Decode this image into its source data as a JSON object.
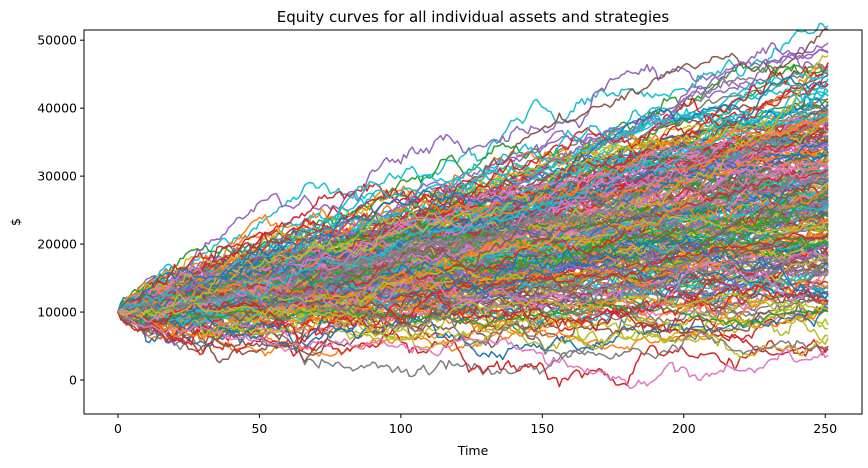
{
  "chart_data": {
    "type": "line",
    "title": "Equity curves for all individual assets and strategies",
    "xlabel": "Time",
    "ylabel": "$",
    "xlim": [
      -12,
      263
    ],
    "ylim": [
      -5000,
      51500
    ],
    "x_ticks": [
      0,
      50,
      100,
      150,
      200,
      250
    ],
    "y_ticks": [
      0,
      10000,
      20000,
      30000,
      40000,
      50000
    ],
    "grid": false,
    "legend": "none",
    "n_points": 252,
    "start_value": 10000,
    "n_series": 300,
    "color_cycle": [
      "#1f77b4",
      "#ff7f0e",
      "#2ca02c",
      "#d62728",
      "#9467bd",
      "#8c564b",
      "#e377c2",
      "#7f7f7f",
      "#bcbd22",
      "#17becf"
    ],
    "series_final_values_highlight": [
      {
        "color": "#bcbd22",
        "final": 48000,
        "peak": 48700
      },
      {
        "color": "#1f77b4",
        "final": 45000
      },
      {
        "color": "#e377c2",
        "final": 3200
      },
      {
        "color": "#7f7f7f",
        "final": 4800
      }
    ]
  }
}
